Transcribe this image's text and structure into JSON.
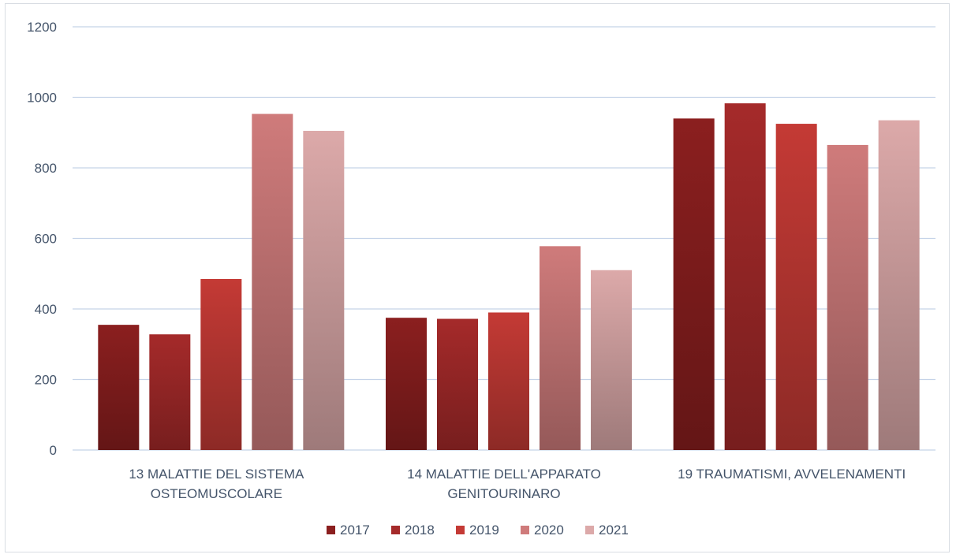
{
  "chart_data": {
    "type": "bar",
    "categories": [
      [
        "13 MALATTIE DEL SISTEMA",
        "OSTEOMUSCOLARE"
      ],
      [
        "14 MALATTIE DELL'APPARATO",
        "GENITOURINARO"
      ],
      [
        "19 TRAUMATISMI, AVVELENAMENTI"
      ]
    ],
    "series": [
      {
        "name": "2017",
        "color": "#8b1f1f",
        "values": [
          355,
          375,
          940
        ]
      },
      {
        "name": "2018",
        "color": "#a52a2a",
        "values": [
          328,
          372,
          983
        ]
      },
      {
        "name": "2019",
        "color": "#c43a35",
        "values": [
          485,
          390,
          925
        ]
      },
      {
        "name": "2020",
        "color": "#cf7b7b",
        "values": [
          953,
          578,
          865
        ]
      },
      {
        "name": "2021",
        "color": "#dca9a9",
        "values": [
          905,
          510,
          935
        ]
      }
    ],
    "ylim": [
      0,
      1200
    ],
    "yticks": [
      "0",
      "200",
      "400",
      "600",
      "800",
      "1000",
      "1200"
    ],
    "grid": true,
    "legend": "bottom"
  }
}
